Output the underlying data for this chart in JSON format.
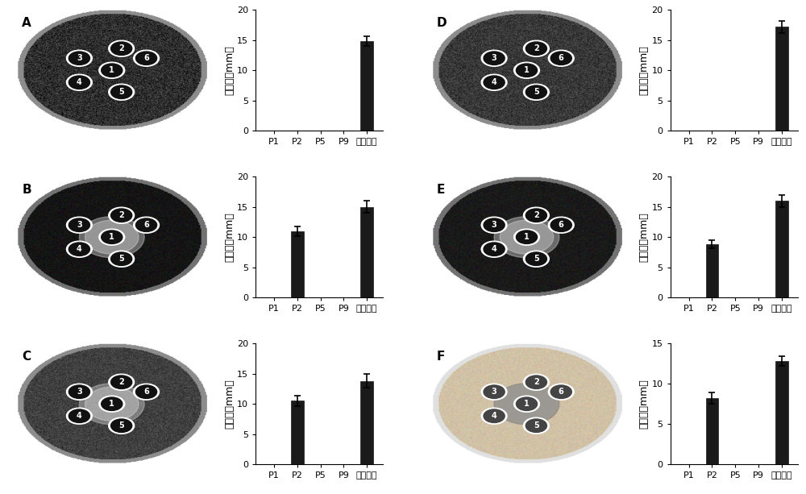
{
  "panels": [
    {
      "label": "A",
      "categories": [
        "P1",
        "P2",
        "P5",
        "P9",
        "阳性对照"
      ],
      "values": [
        0,
        0,
        0,
        0,
        14.8
      ],
      "errors": [
        0,
        0,
        0,
        0,
        0.8
      ],
      "ylim": [
        0,
        20
      ],
      "yticks": [
        0,
        5,
        10,
        15,
        20
      ],
      "ylabel": "抑菌圈（mm）",
      "bg_gray": 0.18,
      "texture_noise": 0.12,
      "has_inhibition_zone": false,
      "inhibition_disk": "1",
      "rim_gray": 0.55,
      "is_light": false
    },
    {
      "label": "B",
      "categories": [
        "P1",
        "P2",
        "P5",
        "P9",
        "阳性对照"
      ],
      "values": [
        0,
        11.0,
        0,
        0,
        15.0
      ],
      "errors": [
        0,
        0.8,
        0,
        0,
        1.0
      ],
      "ylim": [
        0,
        20
      ],
      "yticks": [
        0,
        5,
        10,
        15,
        20
      ],
      "ylabel": "抑菌圈（mm）",
      "bg_gray": 0.08,
      "texture_noise": 0.05,
      "has_inhibition_zone": true,
      "inhibition_disk": "1",
      "rim_gray": 0.45,
      "is_light": false
    },
    {
      "label": "C",
      "categories": [
        "P1",
        "P2",
        "P5",
        "P9",
        "阳性对照"
      ],
      "values": [
        0,
        10.5,
        0,
        0,
        13.8
      ],
      "errors": [
        0,
        0.9,
        0,
        0,
        1.1
      ],
      "ylim": [
        0,
        20
      ],
      "yticks": [
        0,
        5,
        10,
        15,
        20
      ],
      "ylabel": "抑菌圈（mm）",
      "bg_gray": 0.25,
      "texture_noise": 0.08,
      "has_inhibition_zone": true,
      "inhibition_disk": "1",
      "rim_gray": 0.55,
      "is_light": false
    },
    {
      "label": "D",
      "categories": [
        "P1",
        "P2",
        "P5",
        "P9",
        "阳性对照"
      ],
      "values": [
        0,
        0,
        0,
        0,
        17.2
      ],
      "errors": [
        0,
        0,
        0,
        0,
        1.0
      ],
      "ylim": [
        0,
        20
      ],
      "yticks": [
        0,
        5,
        10,
        15,
        20
      ],
      "ylabel": "抑菌圈（mm）",
      "bg_gray": 0.22,
      "texture_noise": 0.1,
      "has_inhibition_zone": false,
      "inhibition_disk": "1",
      "rim_gray": 0.55,
      "is_light": false
    },
    {
      "label": "E",
      "categories": [
        "P1",
        "P2",
        "P5",
        "P9",
        "阳性对照"
      ],
      "values": [
        0,
        8.8,
        0,
        0,
        16.0
      ],
      "errors": [
        0,
        0.7,
        0,
        0,
        1.0
      ],
      "ylim": [
        0,
        20
      ],
      "yticks": [
        0,
        5,
        10,
        15,
        20
      ],
      "ylabel": "抑菌圈（mm）",
      "bg_gray": 0.1,
      "texture_noise": 0.06,
      "has_inhibition_zone": true,
      "inhibition_disk": "1",
      "rim_gray": 0.45,
      "is_light": false
    },
    {
      "label": "F",
      "categories": [
        "P1",
        "P2",
        "P5",
        "P9",
        "阳性对照"
      ],
      "values": [
        0,
        8.2,
        0,
        0,
        12.8
      ],
      "errors": [
        0,
        0.7,
        0,
        0,
        0.6
      ],
      "ylim": [
        0,
        15
      ],
      "yticks": [
        0,
        5,
        10,
        15
      ],
      "ylabel": "抑菌圈（mm）",
      "bg_gray": 0.82,
      "texture_noise": 0.06,
      "has_inhibition_zone": true,
      "inhibition_disk": "1",
      "rim_gray": 0.88,
      "is_light": true
    }
  ],
  "bar_color": "#1a1a1a",
  "bg_color": "#ffffff",
  "font_size_label": 9,
  "font_size_tick": 8,
  "font_size_panel_label": 11
}
